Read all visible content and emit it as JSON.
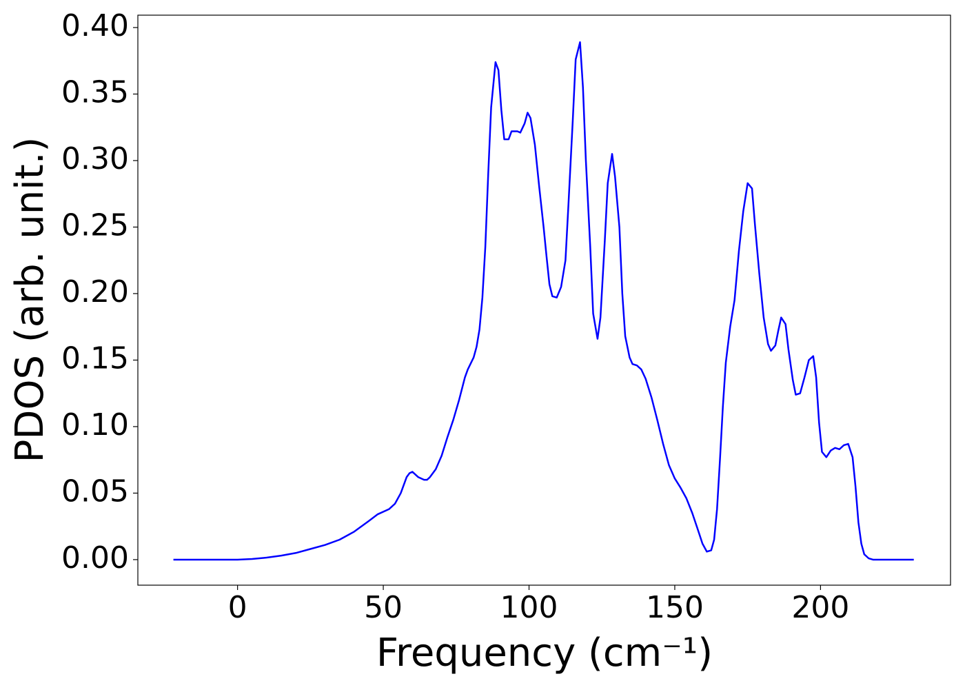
{
  "chart_data": {
    "type": "line",
    "xlabel": "Frequency (cm⁻¹)",
    "ylabel": "PDOS (arb. unit.)",
    "x": [
      -22,
      -15,
      -8,
      0,
      5,
      10,
      15,
      20,
      25,
      30,
      35,
      40,
      45,
      48,
      52,
      54,
      56,
      58,
      59,
      60,
      62,
      64,
      65,
      66,
      68,
      70,
      72,
      74,
      76,
      78,
      79,
      81,
      82,
      83,
      84,
      85,
      86,
      87,
      88.5,
      89.5,
      90.5,
      91.5,
      93,
      94,
      96,
      97,
      98.5,
      99.5,
      100.5,
      102,
      103.5,
      105,
      106,
      107,
      108,
      109.5,
      111,
      112.5,
      113.5,
      115,
      116,
      117.5,
      118.5,
      119.5,
      121,
      122,
      123.5,
      124.5,
      126,
      127,
      128.5,
      129.5,
      131,
      132,
      133,
      134.5,
      135.5,
      137,
      138.5,
      140,
      142,
      144,
      146,
      148,
      150,
      152,
      154,
      156,
      158,
      159.5,
      161,
      162.5,
      163.5,
      164.5,
      165.5,
      166.5,
      167.5,
      169,
      170.5,
      172,
      173.5,
      175,
      176.5,
      177.5,
      179,
      180.5,
      182,
      183,
      184.5,
      185.5,
      186.5,
      188,
      189,
      190.5,
      191.5,
      193,
      194.5,
      196,
      197.5,
      198.5,
      199.5,
      200.5,
      202,
      203.5,
      205,
      206.5,
      208,
      209.5,
      211,
      212,
      213,
      214,
      215,
      216.5,
      218,
      225,
      232
    ],
    "values": [
      0,
      0,
      0,
      0,
      0.0005,
      0.0015,
      0.003,
      0.005,
      0.008,
      0.011,
      0.015,
      0.021,
      0.029,
      0.034,
      0.038,
      0.042,
      0.05,
      0.062,
      0.065,
      0.066,
      0.062,
      0.06,
      0.06,
      0.062,
      0.068,
      0.078,
      0.092,
      0.105,
      0.12,
      0.137,
      0.143,
      0.152,
      0.16,
      0.173,
      0.197,
      0.235,
      0.29,
      0.34,
      0.374,
      0.368,
      0.338,
      0.316,
      0.316,
      0.322,
      0.322,
      0.321,
      0.328,
      0.336,
      0.332,
      0.312,
      0.28,
      0.25,
      0.228,
      0.207,
      0.198,
      0.197,
      0.205,
      0.225,
      0.266,
      0.33,
      0.376,
      0.389,
      0.355,
      0.3,
      0.235,
      0.185,
      0.166,
      0.182,
      0.24,
      0.283,
      0.305,
      0.288,
      0.25,
      0.2,
      0.168,
      0.152,
      0.147,
      0.146,
      0.143,
      0.136,
      0.122,
      0.105,
      0.087,
      0.071,
      0.061,
      0.054,
      0.046,
      0.035,
      0.022,
      0.012,
      0.006,
      0.007,
      0.015,
      0.038,
      0.075,
      0.115,
      0.148,
      0.175,
      0.195,
      0.232,
      0.262,
      0.283,
      0.279,
      0.252,
      0.215,
      0.182,
      0.162,
      0.157,
      0.161,
      0.172,
      0.182,
      0.177,
      0.158,
      0.135,
      0.124,
      0.125,
      0.137,
      0.15,
      0.153,
      0.137,
      0.103,
      0.081,
      0.077,
      0.082,
      0.084,
      0.083,
      0.086,
      0.087,
      0.077,
      0.055,
      0.028,
      0.012,
      0.004,
      0.001,
      0,
      0,
      0
    ],
    "color": "#0000ff",
    "xlim": [
      -34.2,
      244.6
    ],
    "ylim": [
      -0.0192,
      0.4093
    ],
    "xticks": [
      0,
      50,
      100,
      150,
      200
    ],
    "yticks": [
      {
        "value": 0,
        "label": "0.00"
      },
      {
        "value": 0.05,
        "label": "0.05"
      },
      {
        "value": 0.1,
        "label": "0.10"
      },
      {
        "value": 0.15,
        "label": "0.15"
      },
      {
        "value": 0.2,
        "label": "0.20"
      },
      {
        "value": 0.25,
        "label": "0.25"
      },
      {
        "value": 0.3,
        "label": "0.30"
      },
      {
        "value": 0.35,
        "label": "0.35"
      },
      {
        "value": 0.4,
        "label": "0.40"
      }
    ]
  }
}
